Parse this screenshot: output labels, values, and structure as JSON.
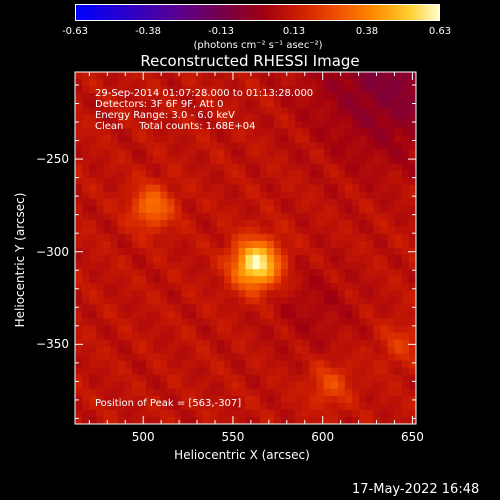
{
  "colorbar": {
    "ticks": [
      "-0.63",
      "-0.38",
      "-0.13",
      "0.13",
      "0.38",
      "0.63"
    ],
    "unit": "(photons cm⁻² s⁻¹ asec⁻²)",
    "min": -0.63,
    "max": 0.63
  },
  "chart_data": {
    "type": "heatmap",
    "title": "Reconstructed RHESSI Image",
    "xlabel": "Heliocentric X (arcsec)",
    "ylabel": "Heliocentric Y (arcsec)",
    "xlim": [
      462,
      652
    ],
    "ylim": [
      -393,
      -203
    ],
    "x_ticks": [
      "500",
      "550",
      "600",
      "650"
    ],
    "y_ticks": [
      "-250",
      "-300",
      "-350"
    ],
    "sources": [
      {
        "x": 563,
        "y": -307,
        "peak": 0.63
      },
      {
        "x": 505,
        "y": -276,
        "peak": 0.35
      },
      {
        "x": 604,
        "y": -372,
        "peak": 0.25
      },
      {
        "x": 643,
        "y": -350,
        "peak": 0.2
      }
    ],
    "annotations": {
      "line1": "29-Sep-2014 01:07:28.000 to 01:13:28.000",
      "line2": "Detectors: 3F 6F 9F, Att 0",
      "line3": "Energy Range: 3.0 - 6.0 keV",
      "line4": "Clean     Total counts: 1.68E+04",
      "peak": "Position of Peak = [563,-307]"
    }
  },
  "timestamp": "17-May-2022 16:48",
  "colors": {
    "background": "#000000",
    "axis": "#ffffff"
  }
}
